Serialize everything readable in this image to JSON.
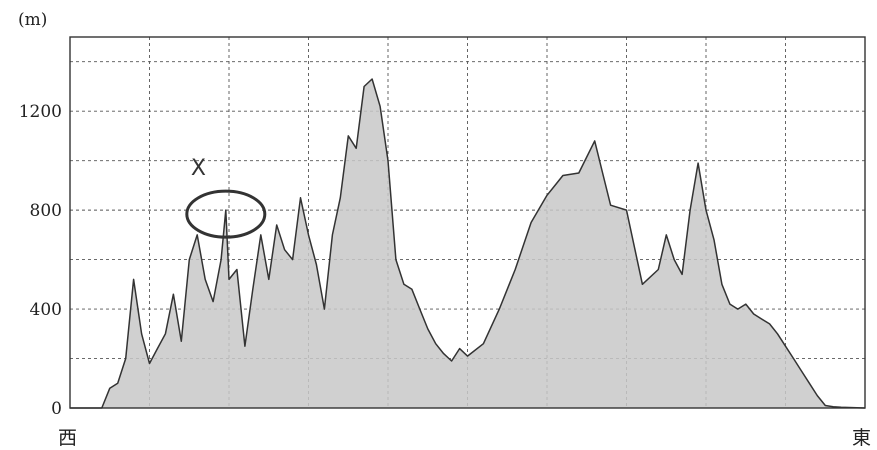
{
  "chart_data": {
    "type": "area",
    "title": "",
    "ylabel": "(m)",
    "xlabel_left": "西",
    "xlabel_right": "東",
    "ylim": [
      0,
      1500
    ],
    "xlim": [
      0,
      100
    ],
    "yticks": [
      {
        "value": 0,
        "label": "0"
      },
      {
        "value": 400,
        "label": "400"
      },
      {
        "value": 800,
        "label": "800"
      },
      {
        "value": 1200,
        "label": "1200"
      }
    ],
    "grid": true,
    "fill_color": "#c8c8c8",
    "line_color": "#333333",
    "annotation": {
      "label": "X",
      "x": 19.6,
      "y": 800
    },
    "x": [
      0,
      4,
      5,
      6,
      7,
      8,
      9,
      10,
      11,
      12,
      13,
      14,
      15,
      16,
      17,
      18,
      19,
      19.6,
      20,
      21,
      22,
      23,
      24,
      25,
      26,
      27,
      28,
      29,
      30,
      31,
      32,
      33,
      34,
      35,
      36,
      37,
      38,
      39,
      40,
      41,
      42,
      43,
      44,
      45,
      46,
      47,
      48,
      49,
      50,
      52,
      54,
      56,
      58,
      60,
      61,
      62,
      64,
      66,
      67,
      68,
      70,
      72,
      74,
      75,
      76,
      77,
      78,
      79,
      80,
      81,
      82,
      83,
      84,
      85,
      86,
      87,
      88,
      89,
      90,
      91,
      92,
      93,
      94,
      95,
      96,
      97,
      98,
      99,
      100
    ],
    "values": [
      0,
      0,
      80,
      100,
      200,
      520,
      300,
      180,
      240,
      300,
      460,
      270,
      600,
      700,
      520,
      430,
      600,
      800,
      520,
      560,
      250,
      480,
      700,
      520,
      740,
      640,
      600,
      850,
      700,
      580,
      400,
      700,
      850,
      1100,
      1050,
      1300,
      1330,
      1220,
      1000,
      600,
      500,
      480,
      400,
      320,
      260,
      220,
      190,
      240,
      210,
      260,
      400,
      560,
      750,
      860,
      900,
      940,
      950,
      1080,
      950,
      820,
      800,
      500,
      560,
      700,
      600,
      540,
      800,
      990,
      800,
      680,
      500,
      420,
      400,
      420,
      380,
      360,
      340,
      300,
      250,
      200,
      150,
      100,
      50,
      10,
      5,
      3,
      2,
      1,
      0
    ]
  }
}
